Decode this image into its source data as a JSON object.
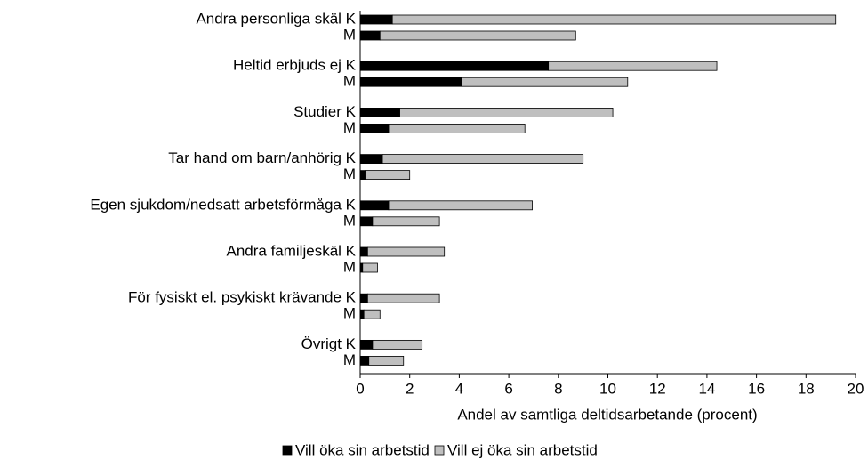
{
  "chart_data": {
    "type": "stacked-bar-horizontal",
    "categories": [
      "Andra personliga skäl K",
      "M",
      "Heltid erbjuds ej K",
      "M",
      "Studier K",
      "M",
      "Tar hand om barn/anhörig K",
      "M",
      "Egen sjukdom/nedsatt arbetsförmåga K",
      "M",
      "Andra familjeskäl K",
      "M",
      "För fysiskt el. psykiskt krävande K",
      "M",
      "Övrigt K",
      "M"
    ],
    "series": [
      {
        "name": "Vill öka sin arbetstid",
        "color": "#000000",
        "values": [
          1.3,
          0.8,
          7.6,
          4.1,
          1.6,
          1.15,
          0.9,
          0.2,
          1.15,
          0.5,
          0.3,
          0.1,
          0.3,
          0.15,
          0.5,
          0.35
        ]
      },
      {
        "name": "Vill ej öka sin arbetstid",
        "color": "#bfbfbf",
        "values": [
          17.9,
          7.9,
          6.8,
          6.7,
          8.6,
          5.5,
          8.1,
          1.8,
          5.8,
          2.7,
          3.1,
          0.6,
          2.9,
          0.65,
          2.0,
          1.4
        ]
      }
    ],
    "xlabel": "Andel av samtliga deltidsarbetande (procent)",
    "xlim": [
      0,
      20
    ],
    "xticks": [
      0,
      2,
      4,
      6,
      8,
      10,
      12,
      14,
      16,
      18,
      20
    ],
    "legend": "bottom"
  }
}
